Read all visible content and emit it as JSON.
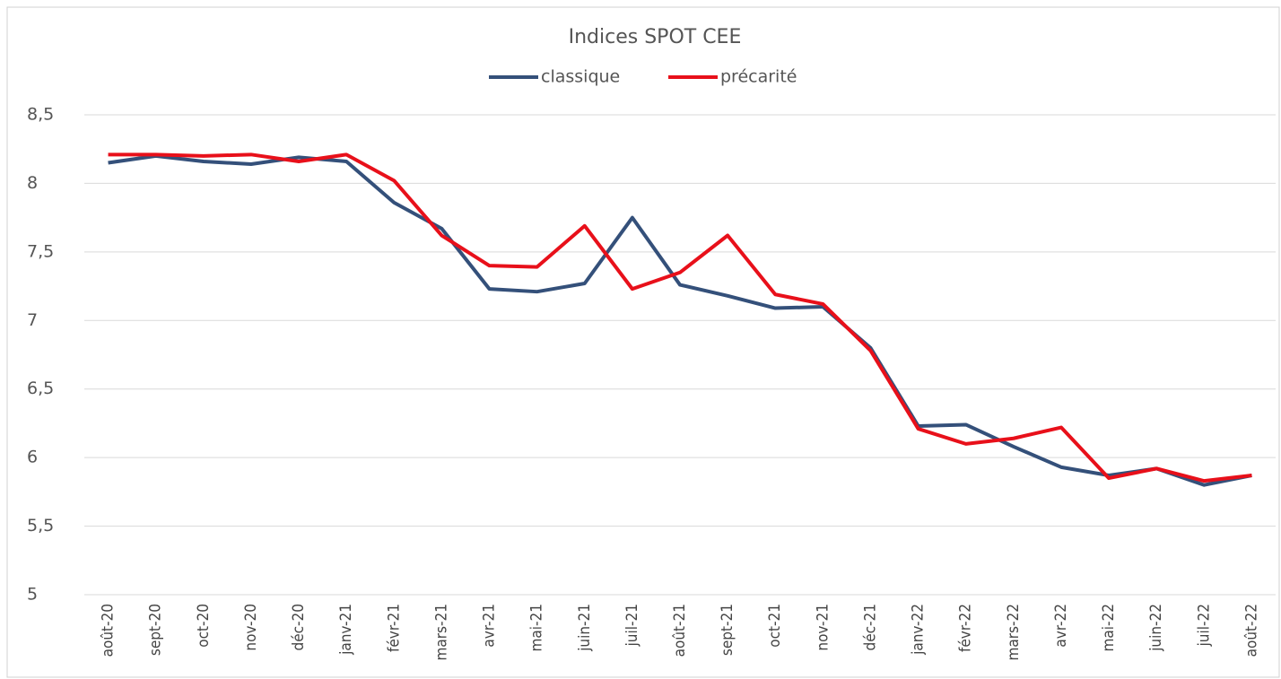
{
  "chart_data": {
    "type": "line",
    "title": "Indices SPOT CEE",
    "categories": [
      "août-20",
      "sept-20",
      "oct-20",
      "nov-20",
      "déc-20",
      "janv-21",
      "févr-21",
      "mars-21",
      "avr-21",
      "mai-21",
      "juin-21",
      "juil-21",
      "août-21",
      "sept-21",
      "oct-21",
      "nov-21",
      "déc-21",
      "janv-22",
      "févr-22",
      "mars-22",
      "avr-22",
      "mai-22",
      "juin-22",
      "juil-22",
      "août-22"
    ],
    "series": [
      {
        "name": "classique",
        "color": "#34507a",
        "values": [
          8.15,
          8.2,
          8.16,
          8.14,
          8.19,
          8.16,
          7.86,
          7.67,
          7.23,
          7.21,
          7.27,
          7.75,
          7.26,
          7.18,
          7.09,
          7.1,
          6.8,
          6.23,
          6.24,
          6.08,
          5.93,
          5.87,
          5.92,
          5.8,
          5.87
        ]
      },
      {
        "name": "précarité",
        "color": "#e8101a",
        "values": [
          8.21,
          8.21,
          8.2,
          8.21,
          8.16,
          8.21,
          8.02,
          7.62,
          7.4,
          7.39,
          7.69,
          7.23,
          7.35,
          7.62,
          7.19,
          7.12,
          6.78,
          6.21,
          6.1,
          6.14,
          6.22,
          5.85,
          5.92,
          5.83,
          5.87
        ]
      }
    ],
    "ylim": [
      5,
      8.5
    ],
    "yticks": [
      5,
      {
        "value": 5.5,
        "label": "5,5"
      },
      6,
      {
        "value": 6.5,
        "label": "6,5"
      },
      7,
      {
        "value": 7.5,
        "label": "7,5"
      },
      8,
      {
        "value": 8.5,
        "label": "8,5"
      }
    ],
    "grid": true,
    "legend": "top"
  }
}
